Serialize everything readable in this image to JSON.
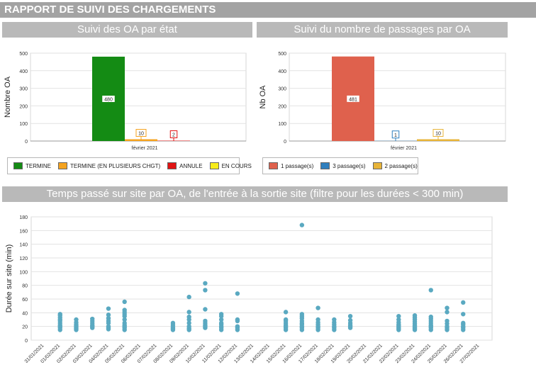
{
  "report": {
    "title": "RAPPORT DE SUIVI DES CHARGEMENTS"
  },
  "sections": {
    "etat": "Suivi des OA par état",
    "passages": "Suivi du nombre de passages par OA",
    "temps": "Temps passé sur site par OA, de l'entrée à la sortie site (filtre pour les durées < 300 min)"
  },
  "chart_data": [
    {
      "type": "bar",
      "id": "etat",
      "categories": [
        "février 2021"
      ],
      "series": [
        {
          "name": "TERMINE",
          "values": [
            480
          ],
          "color": "#148b14"
        },
        {
          "name": "TERMINE (EN PLUSIEURS CHGT)",
          "values": [
            10
          ],
          "color": "#f5a31f"
        },
        {
          "name": "ANNULE",
          "values": [
            2
          ],
          "color": "#e01414"
        },
        {
          "name": "EN COURS",
          "values": [
            0
          ],
          "color": "#f7ec1a"
        }
      ],
      "ylabel": "Nombre OA",
      "ylim": [
        0,
        500
      ],
      "yticks": [
        0,
        100,
        200,
        300,
        400,
        500
      ],
      "legend": "bottom",
      "grid": true
    },
    {
      "type": "bar",
      "id": "passages",
      "categories": [
        "février 2021"
      ],
      "series": [
        {
          "name": "1 passage(s)",
          "values": [
            481
          ],
          "color": "#df614d"
        },
        {
          "name": "3 passage(s)",
          "values": [
            1
          ],
          "color": "#2f7fbe"
        },
        {
          "name": "2 passage(s)",
          "values": [
            10
          ],
          "color": "#e8b438"
        }
      ],
      "ylabel": "Nb OA",
      "ylim": [
        0,
        500
      ],
      "yticks": [
        0,
        100,
        200,
        300,
        400,
        500
      ],
      "legend": "bottom",
      "grid": true
    },
    {
      "type": "scatter",
      "id": "temps",
      "ylabel": "Durée sur site (min)",
      "ylim": [
        0,
        180
      ],
      "yticks": [
        0,
        20,
        40,
        60,
        80,
        100,
        120,
        140,
        160,
        180
      ],
      "grid": true,
      "color": "#5aa9c1",
      "categories": [
        "31/01/2021",
        "01/02/2021",
        "02/02/2021",
        "03/02/2021",
        "04/02/2021",
        "05/02/2021",
        "06/02/2021",
        "07/02/2021",
        "08/02/2021",
        "09/02/2021",
        "10/02/2021",
        "11/02/2021",
        "12/02/2021",
        "13/02/2021",
        "14/02/2021",
        "15/02/2021",
        "16/02/2021",
        "17/02/2021",
        "18/02/2021",
        "19/02/2021",
        "20/02/2021",
        "21/02/2021",
        "22/02/2021",
        "23/02/2021",
        "24/02/2021",
        "25/02/2021",
        "26/02/2021",
        "27/02/2021"
      ],
      "points": [
        [
          "01/02/2021",
          15
        ],
        [
          "01/02/2021",
          18
        ],
        [
          "01/02/2021",
          20
        ],
        [
          "01/02/2021",
          22
        ],
        [
          "01/02/2021",
          25
        ],
        [
          "01/02/2021",
          28
        ],
        [
          "01/02/2021",
          30
        ],
        [
          "01/02/2021",
          33
        ],
        [
          "01/02/2021",
          36
        ],
        [
          "01/02/2021",
          38
        ],
        [
          "02/02/2021",
          15
        ],
        [
          "02/02/2021",
          17
        ],
        [
          "02/02/2021",
          19
        ],
        [
          "02/02/2021",
          21
        ],
        [
          "02/02/2021",
          23
        ],
        [
          "02/02/2021",
          26
        ],
        [
          "02/02/2021",
          30
        ],
        [
          "03/02/2021",
          18
        ],
        [
          "03/02/2021",
          20
        ],
        [
          "03/02/2021",
          22
        ],
        [
          "03/02/2021",
          25
        ],
        [
          "03/02/2021",
          28
        ],
        [
          "03/02/2021",
          31
        ],
        [
          "04/02/2021",
          16
        ],
        [
          "04/02/2021",
          18
        ],
        [
          "04/02/2021",
          20
        ],
        [
          "04/02/2021",
          25
        ],
        [
          "04/02/2021",
          28
        ],
        [
          "04/02/2021",
          32
        ],
        [
          "04/02/2021",
          37
        ],
        [
          "04/02/2021",
          46
        ],
        [
          "05/02/2021",
          15
        ],
        [
          "05/02/2021",
          18
        ],
        [
          "05/02/2021",
          20
        ],
        [
          "05/02/2021",
          22
        ],
        [
          "05/02/2021",
          25
        ],
        [
          "05/02/2021",
          30
        ],
        [
          "05/02/2021",
          35
        ],
        [
          "05/02/2021",
          38
        ],
        [
          "05/02/2021",
          41
        ],
        [
          "05/02/2021",
          44
        ],
        [
          "05/02/2021",
          56
        ],
        [
          "08/02/2021",
          15
        ],
        [
          "08/02/2021",
          17
        ],
        [
          "08/02/2021",
          19
        ],
        [
          "08/02/2021",
          22
        ],
        [
          "08/02/2021",
          25
        ],
        [
          "09/02/2021",
          15
        ],
        [
          "09/02/2021",
          17
        ],
        [
          "09/02/2021",
          20
        ],
        [
          "09/02/2021",
          25
        ],
        [
          "09/02/2021",
          30
        ],
        [
          "09/02/2021",
          34
        ],
        [
          "09/02/2021",
          41
        ],
        [
          "09/02/2021",
          63
        ],
        [
          "10/02/2021",
          18
        ],
        [
          "10/02/2021",
          20
        ],
        [
          "10/02/2021",
          22
        ],
        [
          "10/02/2021",
          25
        ],
        [
          "10/02/2021",
          28
        ],
        [
          "10/02/2021",
          45
        ],
        [
          "10/02/2021",
          73
        ],
        [
          "10/02/2021",
          83
        ],
        [
          "11/02/2021",
          15
        ],
        [
          "11/02/2021",
          18
        ],
        [
          "11/02/2021",
          20
        ],
        [
          "11/02/2021",
          23
        ],
        [
          "11/02/2021",
          25
        ],
        [
          "11/02/2021",
          30
        ],
        [
          "11/02/2021",
          35
        ],
        [
          "11/02/2021",
          38
        ],
        [
          "12/02/2021",
          15
        ],
        [
          "12/02/2021",
          18
        ],
        [
          "12/02/2021",
          20
        ],
        [
          "12/02/2021",
          28
        ],
        [
          "12/02/2021",
          30
        ],
        [
          "12/02/2021",
          68
        ],
        [
          "15/02/2021",
          15
        ],
        [
          "15/02/2021",
          18
        ],
        [
          "15/02/2021",
          20
        ],
        [
          "15/02/2021",
          22
        ],
        [
          "15/02/2021",
          25
        ],
        [
          "15/02/2021",
          28
        ],
        [
          "15/02/2021",
          30
        ],
        [
          "15/02/2021",
          41
        ],
        [
          "16/02/2021",
          15
        ],
        [
          "16/02/2021",
          18
        ],
        [
          "16/02/2021",
          20
        ],
        [
          "16/02/2021",
          23
        ],
        [
          "16/02/2021",
          25
        ],
        [
          "16/02/2021",
          28
        ],
        [
          "16/02/2021",
          32
        ],
        [
          "16/02/2021",
          35
        ],
        [
          "16/02/2021",
          38
        ],
        [
          "16/02/2021",
          168
        ],
        [
          "17/02/2021",
          15
        ],
        [
          "17/02/2021",
          18
        ],
        [
          "17/02/2021",
          20
        ],
        [
          "17/02/2021",
          23
        ],
        [
          "17/02/2021",
          26
        ],
        [
          "17/02/2021",
          30
        ],
        [
          "17/02/2021",
          47
        ],
        [
          "18/02/2021",
          15
        ],
        [
          "18/02/2021",
          18
        ],
        [
          "18/02/2021",
          20
        ],
        [
          "18/02/2021",
          23
        ],
        [
          "18/02/2021",
          26
        ],
        [
          "18/02/2021",
          30
        ],
        [
          "19/02/2021",
          18
        ],
        [
          "19/02/2021",
          20
        ],
        [
          "19/02/2021",
          22
        ],
        [
          "19/02/2021",
          25
        ],
        [
          "19/02/2021",
          29
        ],
        [
          "19/02/2021",
          35
        ],
        [
          "22/02/2021",
          15
        ],
        [
          "22/02/2021",
          17
        ],
        [
          "22/02/2021",
          19
        ],
        [
          "22/02/2021",
          21
        ],
        [
          "22/02/2021",
          23
        ],
        [
          "22/02/2021",
          26
        ],
        [
          "22/02/2021",
          30
        ],
        [
          "22/02/2021",
          35
        ],
        [
          "23/02/2021",
          15
        ],
        [
          "23/02/2021",
          17
        ],
        [
          "23/02/2021",
          19
        ],
        [
          "23/02/2021",
          21
        ],
        [
          "23/02/2021",
          24
        ],
        [
          "23/02/2021",
          27
        ],
        [
          "23/02/2021",
          30
        ],
        [
          "23/02/2021",
          33
        ],
        [
          "23/02/2021",
          36
        ],
        [
          "24/02/2021",
          15
        ],
        [
          "24/02/2021",
          18
        ],
        [
          "24/02/2021",
          20
        ],
        [
          "24/02/2021",
          22
        ],
        [
          "24/02/2021",
          25
        ],
        [
          "24/02/2021",
          28
        ],
        [
          "24/02/2021",
          31
        ],
        [
          "24/02/2021",
          34
        ],
        [
          "24/02/2021",
          73
        ],
        [
          "25/02/2021",
          15
        ],
        [
          "25/02/2021",
          18
        ],
        [
          "25/02/2021",
          20
        ],
        [
          "25/02/2021",
          24
        ],
        [
          "25/02/2021",
          28
        ],
        [
          "25/02/2021",
          41
        ],
        [
          "25/02/2021",
          47
        ],
        [
          "26/02/2021",
          15
        ],
        [
          "26/02/2021",
          18
        ],
        [
          "26/02/2021",
          20
        ],
        [
          "26/02/2021",
          23
        ],
        [
          "26/02/2021",
          25
        ],
        [
          "26/02/2021",
          38
        ],
        [
          "26/02/2021",
          55
        ]
      ]
    }
  ]
}
